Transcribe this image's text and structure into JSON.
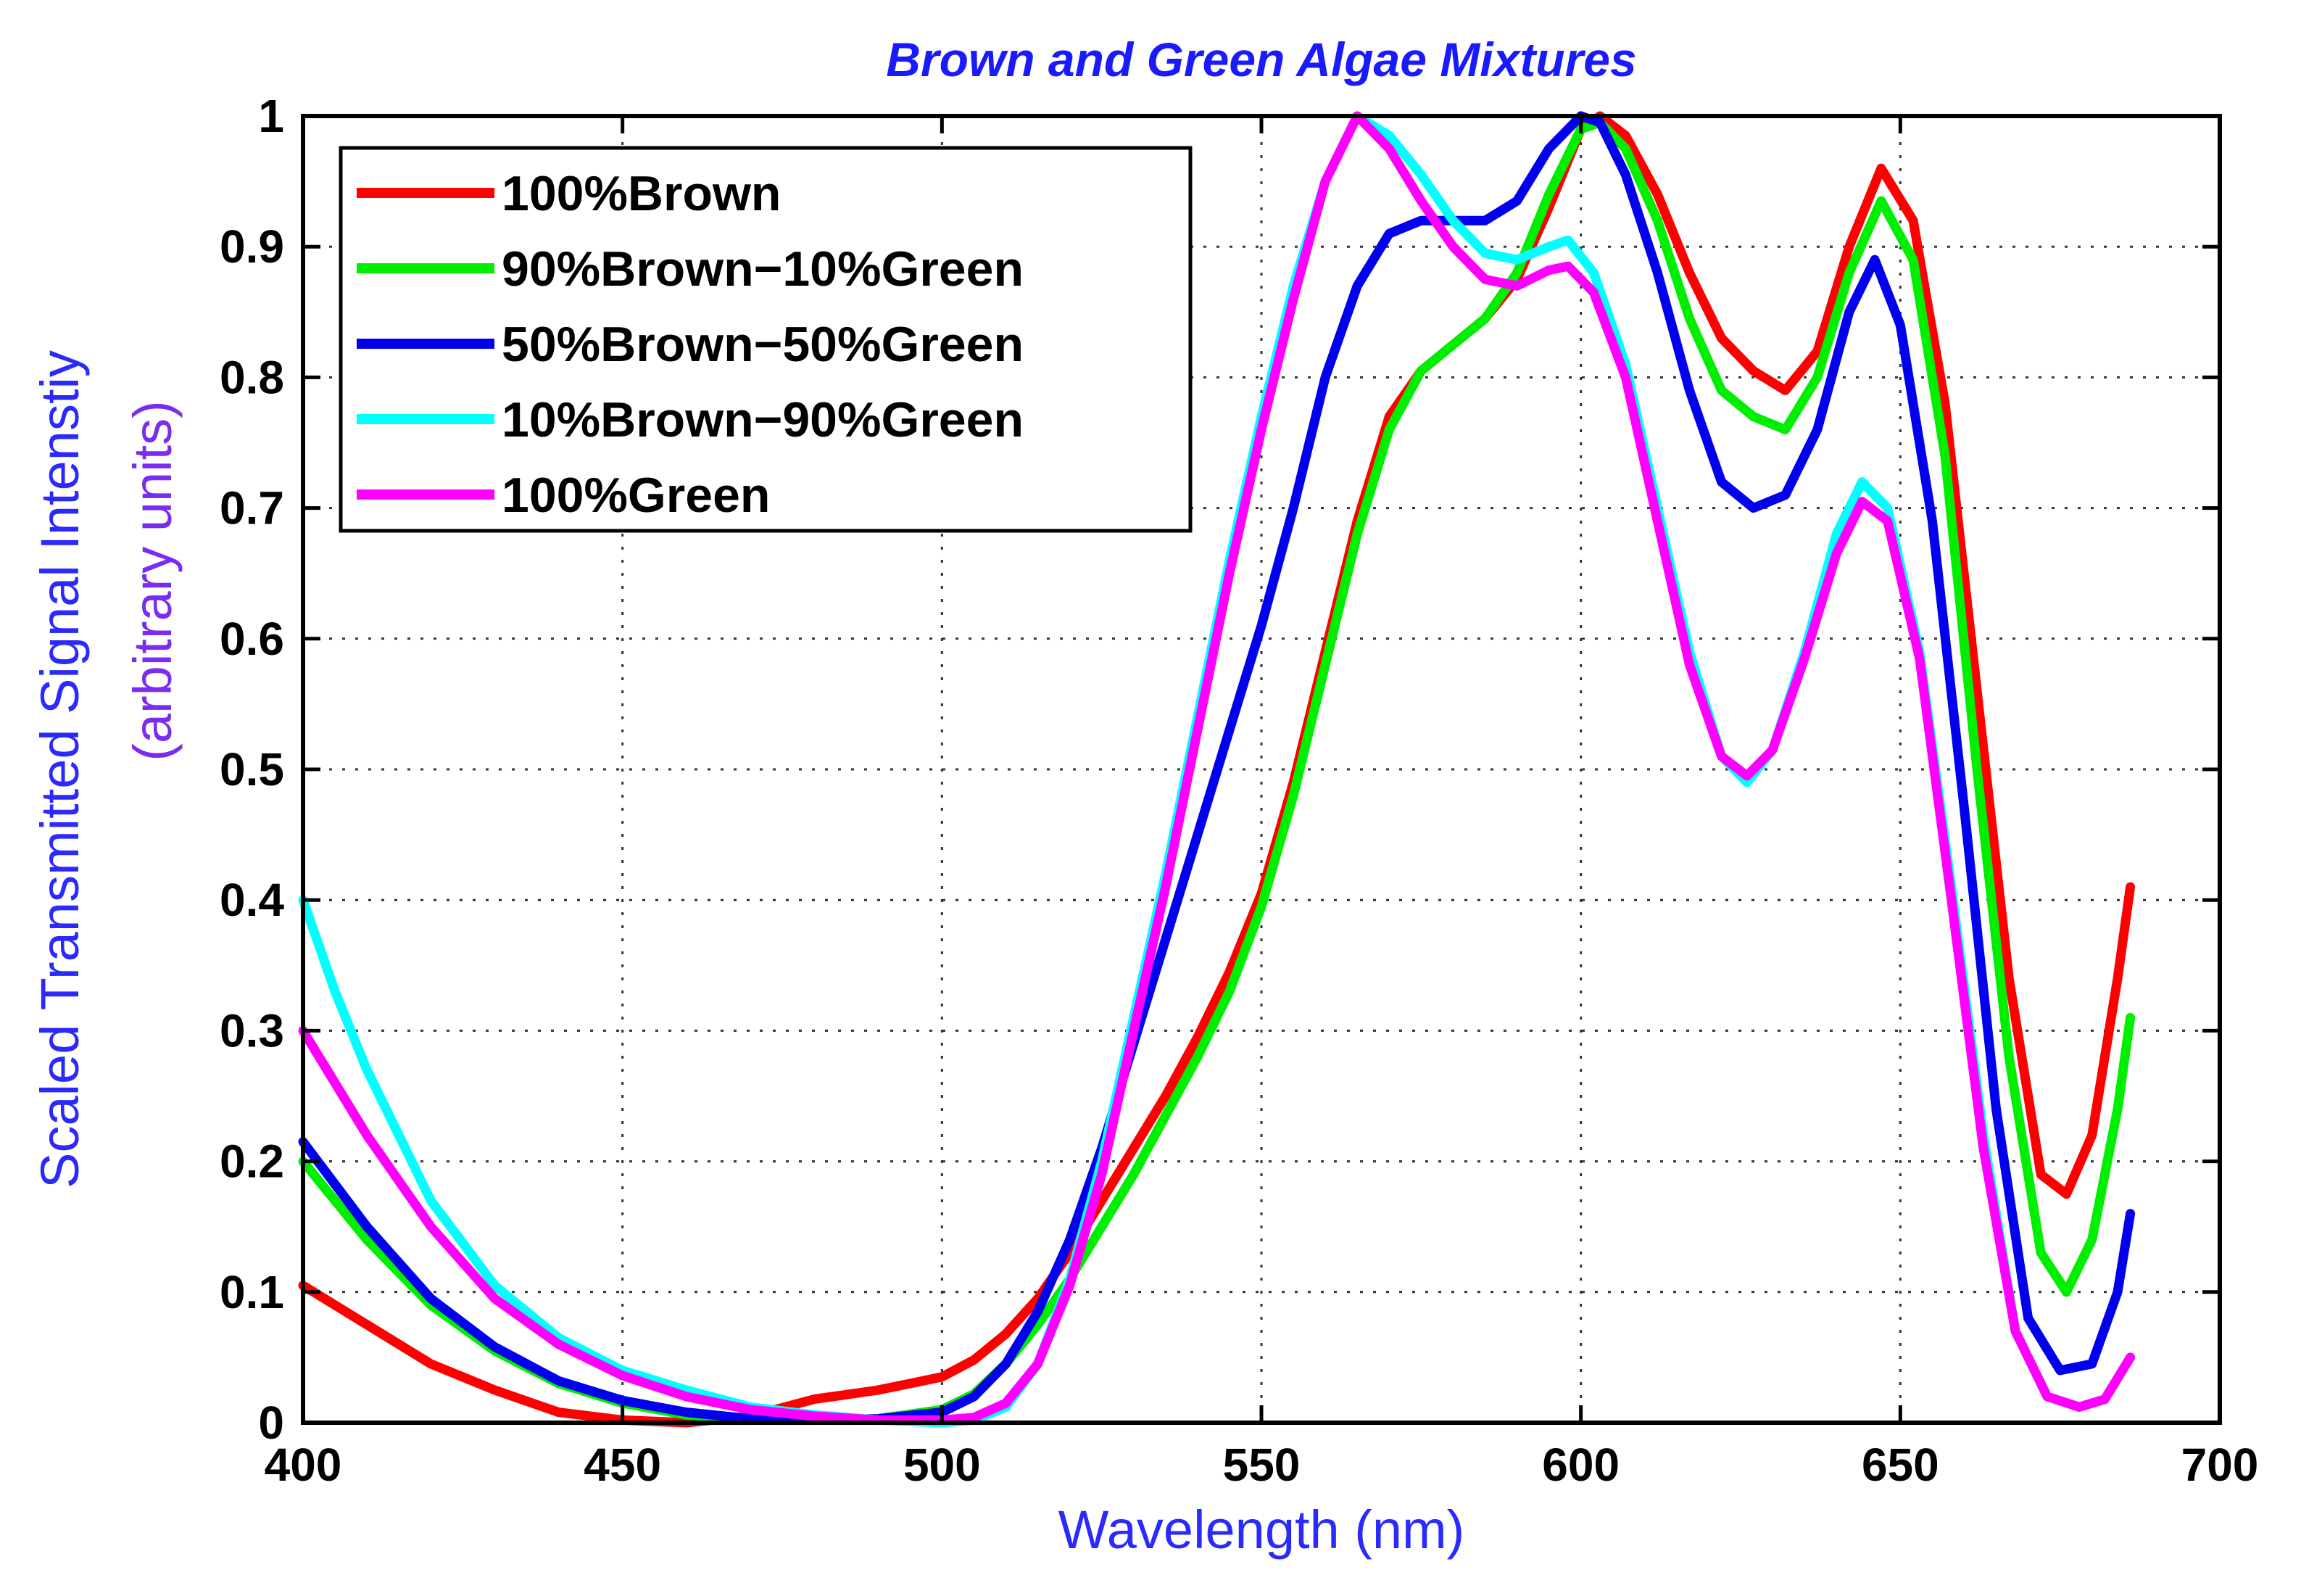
{
  "chart_data": {
    "type": "line",
    "title": "Brown and Green Algae Mixtures",
    "xlabel": "Wavelength (nm)",
    "ylabel_line1": "Scaled Transmitted Signal Intenstiy",
    "ylabel_line2": "(arbitrary units)",
    "xlim": [
      400,
      700
    ],
    "ylim": [
      0,
      1
    ],
    "x_ticks": [
      400,
      450,
      500,
      550,
      600,
      650,
      700
    ],
    "y_ticks": [
      0,
      0.1,
      0.2,
      0.3,
      0.4,
      0.5,
      0.6,
      0.7,
      0.8,
      0.9,
      1
    ],
    "x_tick_labels": [
      "400",
      "450",
      "500",
      "550",
      "600",
      "650",
      "700"
    ],
    "y_tick_labels": [
      "0",
      "0.1",
      "0.2",
      "0.3",
      "0.4",
      "0.5",
      "0.6",
      "0.7",
      "0.8",
      "0.9",
      "1"
    ],
    "grid": true,
    "legend_position": "top-left",
    "colors": {
      "title": "#1a1aff",
      "axis_labels": "#2a2aff",
      "ylabel_line2": "#7a2cf0"
    },
    "series": [
      {
        "name": "100%Brown",
        "color": "#ff0000",
        "points": [
          [
            400,
            0.105
          ],
          [
            410,
            0.075
          ],
          [
            420,
            0.045
          ],
          [
            430,
            0.025
          ],
          [
            440,
            0.008
          ],
          [
            450,
            0.002
          ],
          [
            460,
            0.0
          ],
          [
            470,
            0.005
          ],
          [
            480,
            0.018
          ],
          [
            490,
            0.025
          ],
          [
            500,
            0.035
          ],
          [
            505,
            0.048
          ],
          [
            510,
            0.068
          ],
          [
            515,
            0.095
          ],
          [
            520,
            0.13
          ],
          [
            525,
            0.17
          ],
          [
            530,
            0.21
          ],
          [
            535,
            0.25
          ],
          [
            540,
            0.295
          ],
          [
            545,
            0.345
          ],
          [
            550,
            0.405
          ],
          [
            555,
            0.49
          ],
          [
            560,
            0.59
          ],
          [
            565,
            0.69
          ],
          [
            570,
            0.77
          ],
          [
            575,
            0.805
          ],
          [
            580,
            0.825
          ],
          [
            585,
            0.845
          ],
          [
            590,
            0.875
          ],
          [
            595,
            0.93
          ],
          [
            600,
            0.99
          ],
          [
            603,
            1.0
          ],
          [
            607,
            0.985
          ],
          [
            612,
            0.94
          ],
          [
            617,
            0.88
          ],
          [
            622,
            0.83
          ],
          [
            627,
            0.805
          ],
          [
            632,
            0.79
          ],
          [
            637,
            0.82
          ],
          [
            642,
            0.9
          ],
          [
            647,
            0.96
          ],
          [
            652,
            0.92
          ],
          [
            657,
            0.78
          ],
          [
            662,
            0.56
          ],
          [
            667,
            0.34
          ],
          [
            672,
            0.19
          ],
          [
            676,
            0.175
          ],
          [
            680,
            0.22
          ],
          [
            684,
            0.34
          ],
          [
            686,
            0.41
          ]
        ]
      },
      {
        "name": "90%Brown−10%Green",
        "color": "#00ee00",
        "points": [
          [
            400,
            0.2
          ],
          [
            410,
            0.14
          ],
          [
            420,
            0.09
          ],
          [
            430,
            0.055
          ],
          [
            440,
            0.03
          ],
          [
            450,
            0.015
          ],
          [
            460,
            0.006
          ],
          [
            470,
            0.002
          ],
          [
            480,
            0.002
          ],
          [
            490,
            0.003
          ],
          [
            500,
            0.01
          ],
          [
            505,
            0.022
          ],
          [
            510,
            0.045
          ],
          [
            515,
            0.075
          ],
          [
            520,
            0.11
          ],
          [
            525,
            0.15
          ],
          [
            530,
            0.19
          ],
          [
            535,
            0.235
          ],
          [
            540,
            0.28
          ],
          [
            545,
            0.33
          ],
          [
            550,
            0.395
          ],
          [
            555,
            0.48
          ],
          [
            560,
            0.58
          ],
          [
            565,
            0.68
          ],
          [
            570,
            0.76
          ],
          [
            575,
            0.805
          ],
          [
            580,
            0.825
          ],
          [
            585,
            0.845
          ],
          [
            590,
            0.88
          ],
          [
            595,
            0.94
          ],
          [
            600,
            0.99
          ],
          [
            603,
            0.995
          ],
          [
            607,
            0.975
          ],
          [
            612,
            0.92
          ],
          [
            617,
            0.845
          ],
          [
            622,
            0.79
          ],
          [
            627,
            0.77
          ],
          [
            632,
            0.76
          ],
          [
            637,
            0.8
          ],
          [
            642,
            0.88
          ],
          [
            647,
            0.935
          ],
          [
            652,
            0.89
          ],
          [
            657,
            0.74
          ],
          [
            662,
            0.5
          ],
          [
            667,
            0.28
          ],
          [
            672,
            0.13
          ],
          [
            676,
            0.1
          ],
          [
            680,
            0.14
          ],
          [
            684,
            0.24
          ],
          [
            686,
            0.31
          ]
        ]
      },
      {
        "name": "50%Brown−50%Green",
        "color": "#0000ee",
        "points": [
          [
            400,
            0.215
          ],
          [
            410,
            0.15
          ],
          [
            420,
            0.095
          ],
          [
            430,
            0.058
          ],
          [
            440,
            0.032
          ],
          [
            450,
            0.017
          ],
          [
            460,
            0.008
          ],
          [
            470,
            0.003
          ],
          [
            480,
            0.002
          ],
          [
            490,
            0.003
          ],
          [
            500,
            0.008
          ],
          [
            505,
            0.02
          ],
          [
            510,
            0.045
          ],
          [
            515,
            0.085
          ],
          [
            520,
            0.14
          ],
          [
            525,
            0.21
          ],
          [
            530,
            0.29
          ],
          [
            535,
            0.37
          ],
          [
            540,
            0.45
          ],
          [
            545,
            0.53
          ],
          [
            550,
            0.61
          ],
          [
            555,
            0.7
          ],
          [
            560,
            0.8
          ],
          [
            565,
            0.87
          ],
          [
            570,
            0.91
          ],
          [
            575,
            0.92
          ],
          [
            580,
            0.92
          ],
          [
            585,
            0.92
          ],
          [
            590,
            0.935
          ],
          [
            595,
            0.975
          ],
          [
            600,
            1.0
          ],
          [
            603,
            0.995
          ],
          [
            607,
            0.955
          ],
          [
            612,
            0.88
          ],
          [
            617,
            0.79
          ],
          [
            622,
            0.72
          ],
          [
            627,
            0.7
          ],
          [
            632,
            0.71
          ],
          [
            637,
            0.76
          ],
          [
            642,
            0.85
          ],
          [
            646,
            0.89
          ],
          [
            650,
            0.84
          ],
          [
            655,
            0.69
          ],
          [
            660,
            0.47
          ],
          [
            665,
            0.24
          ],
          [
            670,
            0.08
          ],
          [
            675,
            0.04
          ],
          [
            680,
            0.045
          ],
          [
            684,
            0.1
          ],
          [
            686,
            0.16
          ]
        ]
      },
      {
        "name": "10%Brown−90%Green",
        "color": "#00ffff",
        "points": [
          [
            400,
            0.4
          ],
          [
            405,
            0.33
          ],
          [
            410,
            0.27
          ],
          [
            420,
            0.17
          ],
          [
            430,
            0.105
          ],
          [
            440,
            0.065
          ],
          [
            450,
            0.04
          ],
          [
            460,
            0.025
          ],
          [
            470,
            0.012
          ],
          [
            480,
            0.006
          ],
          [
            490,
            0.002
          ],
          [
            500,
            0.0
          ],
          [
            505,
            0.002
          ],
          [
            510,
            0.012
          ],
          [
            515,
            0.045
          ],
          [
            520,
            0.11
          ],
          [
            525,
            0.2
          ],
          [
            530,
            0.31
          ],
          [
            535,
            0.42
          ],
          [
            540,
            0.54
          ],
          [
            545,
            0.66
          ],
          [
            550,
            0.77
          ],
          [
            555,
            0.87
          ],
          [
            560,
            0.95
          ],
          [
            565,
            1.0
          ],
          [
            570,
            0.985
          ],
          [
            575,
            0.955
          ],
          [
            580,
            0.92
          ],
          [
            585,
            0.895
          ],
          [
            590,
            0.89
          ],
          [
            595,
            0.9
          ],
          [
            598,
            0.905
          ],
          [
            602,
            0.88
          ],
          [
            607,
            0.81
          ],
          [
            612,
            0.7
          ],
          [
            617,
            0.59
          ],
          [
            622,
            0.51
          ],
          [
            626,
            0.49
          ],
          [
            630,
            0.515
          ],
          [
            635,
            0.59
          ],
          [
            640,
            0.68
          ],
          [
            644,
            0.72
          ],
          [
            648,
            0.7
          ],
          [
            653,
            0.59
          ],
          [
            658,
            0.41
          ],
          [
            663,
            0.22
          ],
          [
            668,
            0.07
          ],
          [
            673,
            0.02
          ],
          [
            678,
            0.012
          ],
          [
            682,
            0.018
          ],
          [
            686,
            0.05
          ]
        ]
      },
      {
        "name": "100%Green",
        "color": "#ff00ff",
        "points": [
          [
            400,
            0.3
          ],
          [
            405,
            0.26
          ],
          [
            410,
            0.22
          ],
          [
            420,
            0.15
          ],
          [
            430,
            0.095
          ],
          [
            440,
            0.06
          ],
          [
            450,
            0.036
          ],
          [
            460,
            0.02
          ],
          [
            470,
            0.01
          ],
          [
            480,
            0.005
          ],
          [
            490,
            0.002
          ],
          [
            500,
            0.002
          ],
          [
            505,
            0.004
          ],
          [
            510,
            0.015
          ],
          [
            515,
            0.045
          ],
          [
            520,
            0.105
          ],
          [
            525,
            0.19
          ],
          [
            530,
            0.3
          ],
          [
            535,
            0.41
          ],
          [
            540,
            0.53
          ],
          [
            545,
            0.65
          ],
          [
            550,
            0.76
          ],
          [
            555,
            0.86
          ],
          [
            560,
            0.95
          ],
          [
            565,
            1.0
          ],
          [
            570,
            0.975
          ],
          [
            575,
            0.935
          ],
          [
            580,
            0.9
          ],
          [
            585,
            0.875
          ],
          [
            590,
            0.87
          ],
          [
            595,
            0.882
          ],
          [
            598,
            0.885
          ],
          [
            602,
            0.865
          ],
          [
            607,
            0.8
          ],
          [
            612,
            0.69
          ],
          [
            617,
            0.58
          ],
          [
            622,
            0.51
          ],
          [
            626,
            0.495
          ],
          [
            630,
            0.515
          ],
          [
            635,
            0.585
          ],
          [
            640,
            0.665
          ],
          [
            644,
            0.705
          ],
          [
            648,
            0.69
          ],
          [
            653,
            0.585
          ],
          [
            658,
            0.4
          ],
          [
            663,
            0.21
          ],
          [
            668,
            0.07
          ],
          [
            673,
            0.02
          ],
          [
            678,
            0.012
          ],
          [
            682,
            0.018
          ],
          [
            686,
            0.05
          ]
        ]
      }
    ]
  }
}
